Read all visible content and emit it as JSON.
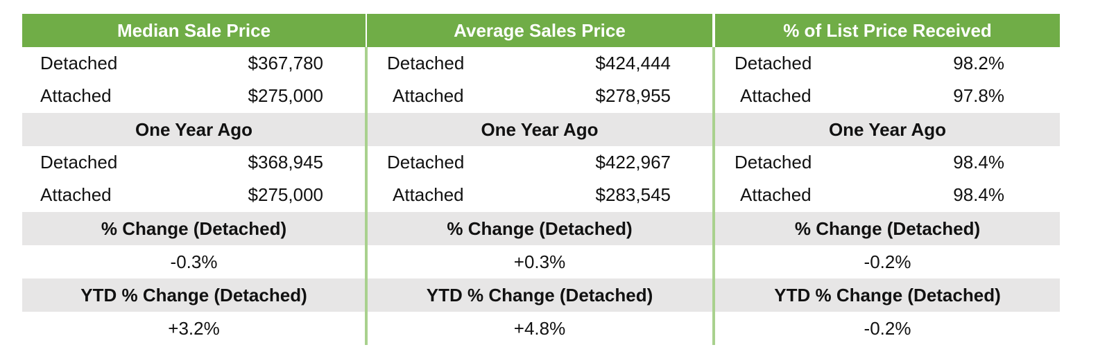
{
  "panels": [
    {
      "title": "Median Sale Price",
      "current": [
        {
          "label": "Detached",
          "value": "$367,780"
        },
        {
          "label": "Attached",
          "value": "$275,000"
        }
      ],
      "prior_heading": "One Year Ago",
      "prior": [
        {
          "label": "Detached",
          "value": "$368,945"
        },
        {
          "label": "Attached",
          "value": "$275,000"
        }
      ],
      "change_heading": "% Change (Detached)",
      "change": "-0.3%",
      "ytd_heading": "YTD % Change (Detached)",
      "ytd": "+3.2%"
    },
    {
      "title": "Average Sales Price",
      "current": [
        {
          "label": "Detached",
          "value": "$424,444"
        },
        {
          "label": "Attached",
          "value": "$278,955"
        }
      ],
      "prior_heading": "One Year Ago",
      "prior": [
        {
          "label": "Detached",
          "value": "$422,967"
        },
        {
          "label": "Attached",
          "value": "$283,545"
        }
      ],
      "change_heading": "% Change (Detached)",
      "change": "+0.3%",
      "ytd_heading": "YTD % Change (Detached)",
      "ytd": "+4.8%"
    },
    {
      "title": "% of List Price Received",
      "current": [
        {
          "label": "Detached",
          "value": "98.2%"
        },
        {
          "label": "Attached",
          "value": "97.8%"
        }
      ],
      "prior_heading": "One Year Ago",
      "prior": [
        {
          "label": "Detached",
          "value": "98.4%"
        },
        {
          "label": "Attached",
          "value": "98.4%"
        }
      ],
      "change_heading": "% Change (Detached)",
      "change": "-0.2%",
      "ytd_heading": "YTD % Change (Detached)",
      "ytd": "-0.2%"
    }
  ]
}
